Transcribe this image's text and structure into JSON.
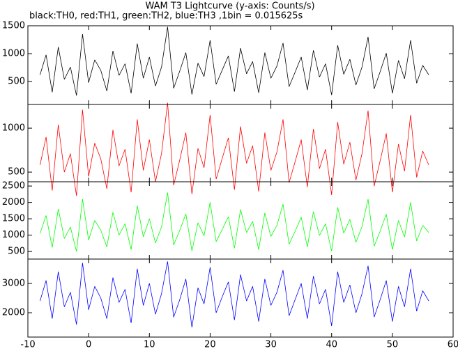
{
  "chart_data": [
    {
      "type": "line",
      "title": "WAM T3 Lightcurve (y-axis: Counts/s)",
      "subtitle": "black:TH0, red:TH1, green:TH2, blue:TH3 ,1bin = 0.015625s",
      "x": [
        -8,
        -7,
        -6,
        -5,
        -4,
        -3,
        -2,
        -1,
        0,
        1,
        2,
        3,
        4,
        5,
        6,
        7,
        8,
        9,
        10,
        11,
        12,
        13,
        14,
        15,
        16,
        17,
        18,
        19,
        20,
        21,
        22,
        23,
        24,
        25,
        26,
        27,
        28,
        29,
        30,
        31,
        32,
        33,
        34,
        35,
        36,
        37,
        38,
        39,
        40,
        41,
        42,
        43,
        44,
        45,
        46,
        47,
        48,
        49,
        50,
        51,
        52,
        53,
        54,
        55,
        56
      ],
      "series": [
        {
          "color": "#000000",
          "values": [
            620,
            980,
            310,
            1120,
            540,
            760,
            250,
            1350,
            480,
            890,
            700,
            330,
            1050,
            610,
            820,
            290,
            1180,
            560,
            940,
            420,
            760,
            1480,
            380,
            690,
            1020,
            270,
            830,
            590,
            1240,
            450,
            710,
            960,
            320,
            1100,
            640,
            860,
            300,
            1020,
            560,
            780,
            1190,
            410,
            670,
            940,
            350,
            1060,
            580,
            820,
            260,
            1150,
            630,
            900,
            440,
            760,
            1300,
            370,
            680,
            1010,
            290,
            880,
            550,
            1240,
            470,
            790,
            620
          ]
        }
      ],
      "xlim": [
        -10,
        60
      ],
      "xticks": [
        -10,
        0,
        10,
        20,
        30,
        40,
        50,
        60
      ],
      "ylim": [
        90,
        1500
      ],
      "yticks": [
        500,
        1000,
        1500
      ]
    },
    {
      "type": "line",
      "x": [
        -8,
        -7,
        -6,
        -5,
        -4,
        -3,
        -2,
        -1,
        0,
        1,
        2,
        3,
        4,
        5,
        6,
        7,
        8,
        9,
        10,
        11,
        12,
        13,
        14,
        15,
        16,
        17,
        18,
        19,
        20,
        21,
        22,
        23,
        24,
        25,
        26,
        27,
        28,
        29,
        30,
        31,
        32,
        33,
        34,
        35,
        36,
        37,
        38,
        39,
        40,
        41,
        42,
        43,
        44,
        45,
        46,
        47,
        48,
        49,
        50,
        51,
        52,
        53,
        54,
        55,
        56
      ],
      "series": [
        {
          "color": "#ff0000",
          "values": [
            580,
            900,
            290,
            1040,
            500,
            710,
            230,
            1210,
            450,
            830,
            650,
            310,
            980,
            570,
            760,
            270,
            1100,
            520,
            870,
            390,
            710,
            1290,
            350,
            640,
            950,
            250,
            770,
            550,
            1150,
            420,
            660,
            890,
            300,
            1020,
            600,
            800,
            280,
            950,
            520,
            730,
            1100,
            380,
            620,
            870,
            330,
            990,
            540,
            760,
            240,
            1070,
            590,
            840,
            410,
            710,
            1200,
            340,
            630,
            940,
            270,
            820,
            510,
            1150,
            440,
            740,
            580
          ]
        }
      ],
      "xlim": [
        -10,
        60
      ],
      "xticks": [
        -10,
        0,
        10,
        20,
        30,
        40,
        50,
        60
      ],
      "ylim": [
        390,
        1270
      ],
      "yticks": [
        500,
        1000
      ]
    },
    {
      "type": "line",
      "x": [
        -8,
        -7,
        -6,
        -5,
        -4,
        -3,
        -2,
        -1,
        0,
        1,
        2,
        3,
        4,
        5,
        6,
        7,
        8,
        9,
        10,
        11,
        12,
        13,
        14,
        15,
        16,
        17,
        18,
        19,
        20,
        21,
        22,
        23,
        24,
        25,
        26,
        27,
        28,
        29,
        30,
        31,
        32,
        33,
        34,
        35,
        36,
        37,
        38,
        39,
        40,
        41,
        42,
        43,
        44,
        45,
        46,
        47,
        48,
        49,
        50,
        51,
        52,
        53,
        54,
        55,
        56
      ],
      "series": [
        {
          "color": "#00ff00",
          "values": [
            1050,
            1600,
            620,
            1800,
            900,
            1250,
            500,
            2100,
            850,
            1450,
            1150,
            640,
            1700,
            1000,
            1350,
            560,
            1900,
            950,
            1500,
            760,
            1250,
            2300,
            700,
            1150,
            1650,
            520,
            1380,
            980,
            2000,
            800,
            1180,
            1560,
            600,
            1780,
            1080,
            1420,
            560,
            1680,
            960,
            1300,
            1950,
            720,
            1120,
            1550,
            640,
            1720,
            990,
            1350,
            510,
            1850,
            1060,
            1480,
            780,
            1260,
            2100,
            660,
            1130,
            1640,
            560,
            1450,
            940,
            2000,
            820,
            1300,
            1080
          ]
        }
      ],
      "xlim": [
        -10,
        60
      ],
      "xticks": [
        -10,
        0,
        10,
        20,
        30,
        40,
        50,
        60
      ],
      "ylim": [
        270,
        2630
      ],
      "yticks": [
        500,
        1000,
        1500,
        2000,
        2500
      ]
    },
    {
      "type": "line",
      "x": [
        -8,
        -7,
        -6,
        -5,
        -4,
        -3,
        -2,
        -1,
        0,
        1,
        2,
        3,
        4,
        5,
        6,
        7,
        8,
        9,
        10,
        11,
        12,
        13,
        14,
        15,
        16,
        17,
        18,
        19,
        20,
        21,
        22,
        23,
        24,
        25,
        26,
        27,
        28,
        29,
        30,
        31,
        32,
        33,
        34,
        35,
        36,
        37,
        38,
        39,
        40,
        41,
        42,
        43,
        44,
        45,
        46,
        47,
        48,
        49,
        50,
        51,
        52,
        53,
        54,
        55,
        56
      ],
      "series": [
        {
          "color": "#0000ff",
          "values": [
            2400,
            3100,
            1800,
            3400,
            2200,
            2700,
            1600,
            3700,
            2100,
            2900,
            2500,
            1800,
            3200,
            2350,
            2800,
            1650,
            3500,
            2250,
            3000,
            1950,
            2650,
            3750,
            1850,
            2450,
            3150,
            1500,
            2850,
            2300,
            3550,
            2000,
            2550,
            3050,
            1750,
            3300,
            2400,
            2900,
            1700,
            3150,
            2250,
            2700,
            3450,
            1900,
            2450,
            3000,
            1800,
            3250,
            2300,
            2800,
            1550,
            3400,
            2350,
            2950,
            2000,
            2650,
            3600,
            1850,
            2450,
            3100,
            1700,
            2900,
            2200,
            3500,
            2050,
            2750,
            2400
          ]
        }
      ],
      "xlim": [
        -10,
        60
      ],
      "xticks": [
        -10,
        0,
        10,
        20,
        30,
        40,
        50,
        60
      ],
      "ylim": [
        1170,
        3830
      ],
      "yticks": [
        2000,
        3000
      ]
    }
  ]
}
